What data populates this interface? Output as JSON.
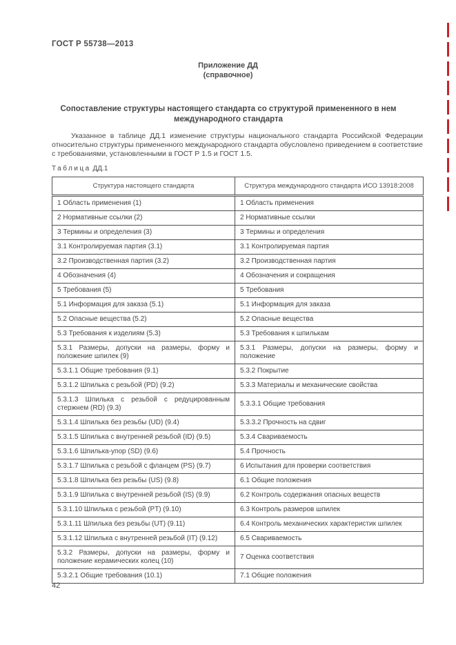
{
  "page": {
    "gost_number": "ГОСТ Р 55738—2013",
    "page_number": "42"
  },
  "annex": {
    "line1": "Приложение ДД",
    "line2": "(справочное)"
  },
  "title": "Сопоставление структуры настоящего стандарта со структурой примененного в нем международного стандарта",
  "intro": "Указанное в таблице ДД.1 изменение структуры национального стандарта Российской Федерации относительно структуры примененного международного стандарта обусловлено приведением в соответствие с требованиями, установленными в ГОСТ Р 1.5 и ГОСТ 1.5.",
  "table": {
    "label_word": "Таблица",
    "label_number": "ДД.1",
    "headers": [
      "Структура настоящего стандарта",
      "Структура международного стандарта ИСО 13918:2008"
    ],
    "rows": [
      {
        "left": "1  Область применения (1)",
        "right": "1  Область применения"
      },
      {
        "left": "2  Нормативные ссылки (2)",
        "right": "2  Нормативные ссылки"
      },
      {
        "left": "3  Термины и определения (3)",
        "right": "3  Термины и определения"
      },
      {
        "left": "3.1  Контролируемая партия (3.1)",
        "right": "3.1  Контролируемая партия"
      },
      {
        "left": "3.2  Производственная партия (3.2)",
        "right": "3.2  Производственная партия"
      },
      {
        "left": "4  Обозначения (4)",
        "right": "4  Обозначения и сокращения"
      },
      {
        "left": "5  Требования (5)",
        "right": "5  Требования"
      },
      {
        "left": "5.1  Информация для заказа (5.1)",
        "right": "5.1  Информация для заказа"
      },
      {
        "left": "5.2  Опасные вещества (5.2)",
        "right": "5.2  Опасные вещества"
      },
      {
        "left": "5.3  Требования к изделиям (5.3)",
        "right": "5.3  Требования к шпилькам"
      },
      {
        "left": "5.3.1  Размеры, допуски на размеры, форму и положение шпилек (9)",
        "right": "5.3.1  Размеры, допуски на размеры, форму и положение"
      },
      {
        "left": "5.3.1.1  Общие требования (9.1)",
        "right": "5.3.2  Покрытие"
      },
      {
        "left": "5.3.1.2  Шпилька с резьбой (PD) (9.2)",
        "right": "5.3.3  Материалы и механические свойства"
      },
      {
        "left": "5.3.1.3  Шпилька с резьбой с редуцированным стержнем (RD) (9.3)",
        "right": "5.3.3.1  Общие требования"
      },
      {
        "left": "5.3.1.4  Шпилька без резьбы (UD) (9.4)",
        "right": "5.3.3.2  Прочность на сдвиг"
      },
      {
        "left": "5.3.1.5  Шпилька с внутренней резьбой (ID) (9.5)",
        "right": "5.3.4  Свариваемость"
      },
      {
        "left": "5.3.1.6  Шпилька-упор (SD) (9.6)",
        "right": "5.4  Прочность"
      },
      {
        "left": "5.3.1.7  Шпилька с резьбой с фланцем (PS) (9.7)",
        "right": "6  Испытания для проверки соответствия"
      },
      {
        "left": "5.3.1.8  Шпилька без резьбы (US) (9.8)",
        "right": "6.1  Общие положения"
      },
      {
        "left": "5.3.1.9  Шпилька с внутренней резьбой (IS) (9.9)",
        "right": "6.2  Контроль содержания опасных веществ"
      },
      {
        "left": "5.3.1.10  Шпилька с резьбой (PT) (9.10)",
        "right": "6.3  Контроль размеров шпилек"
      },
      {
        "left": "5.3.1.11  Шпилька без резьбы (UT) (9.11)",
        "right": "6.4  Контроль механических характеристик шпилек"
      },
      {
        "left": "5.3.1.12  Шпилька с внутренней резьбой (IT) (9.12)",
        "right": "6.5  Свариваемость"
      },
      {
        "left": "5.3.2  Размеры, допуски на размеры, форму и положение керамических колец (10)",
        "right": "7  Оценка соответствия"
      },
      {
        "left": "5.3.2.1  Общие требования (10.1)",
        "right": "7.1  Общие положения"
      }
    ]
  },
  "decoration": {
    "change_bar_color": "#c5232b"
  }
}
